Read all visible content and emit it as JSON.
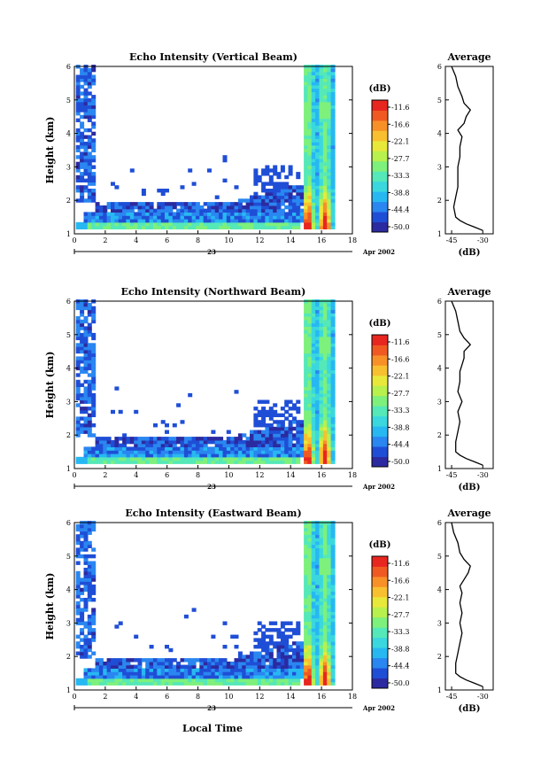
{
  "figure": {
    "xlabel": "Local Time",
    "day_label": "23",
    "month_label": "Apr 2002",
    "colorbar_unit": "(dB)",
    "average_title": "Average",
    "average_xlabel": "(dB)"
  },
  "colors": {
    "scale": [
      "#2c2aa0",
      "#1f4ed6",
      "#2a86f0",
      "#27b8f2",
      "#3ad8de",
      "#55e8b8",
      "#7ef07c",
      "#b8f04e",
      "#e8e83a",
      "#f8c030",
      "#f89028",
      "#f05a22",
      "#e82620"
    ]
  },
  "chart_data": [
    {
      "type": "heatmap",
      "title": "Echo Intensity (Vertical Beam)",
      "ylabel": "Height (km)",
      "xlim": [
        0,
        18
      ],
      "ylim": [
        1,
        6
      ],
      "xticks": [
        "0",
        "2",
        "4",
        "6",
        "8",
        "10",
        "12",
        "14",
        "16",
        "18"
      ],
      "yticks": [
        "1",
        "2",
        "3",
        "4",
        "5",
        "6"
      ],
      "colorbar_ticks": [
        "-11.6",
        "-16.6",
        "-22.1",
        "-27.7",
        "-33.3",
        "-38.8",
        "-44.4",
        "-50.0"
      ],
      "profile_xticks": [
        "-45",
        "-30"
      ],
      "profile": {
        "height": [
          1.1,
          1.2,
          1.3,
          1.4,
          1.5,
          1.8,
          2.1,
          2.4,
          2.7,
          3.0,
          3.3,
          3.6,
          3.9,
          4.1,
          4.3,
          4.5,
          4.7,
          4.9,
          5.1,
          5.4,
          5.7,
          6.0
        ],
        "db": [
          -30,
          -34,
          -38,
          -41,
          -43,
          -44,
          -43,
          -42,
          -42,
          -42,
          -41,
          -41,
          -40,
          -42,
          -39,
          -38,
          -36,
          -39,
          -40,
          -42,
          -43,
          -45
        ]
      }
    },
    {
      "type": "heatmap",
      "title": "Echo Intensity (Northward Beam)",
      "ylabel": "Height (km)",
      "xlim": [
        0,
        18
      ],
      "ylim": [
        1,
        6
      ],
      "xticks": [
        "0",
        "2",
        "4",
        "6",
        "8",
        "10",
        "12",
        "14",
        "16",
        "18"
      ],
      "yticks": [
        "1",
        "2",
        "3",
        "4",
        "5",
        "6"
      ],
      "colorbar_ticks": [
        "-11.6",
        "-16.6",
        "-22.1",
        "-27.7",
        "-33.3",
        "-38.8",
        "-44.4",
        "-50.0"
      ],
      "profile_xticks": [
        "-45",
        "-30"
      ],
      "profile": {
        "height": [
          1.1,
          1.2,
          1.3,
          1.4,
          1.5,
          1.8,
          2.1,
          2.4,
          2.7,
          3.0,
          3.3,
          3.6,
          3.9,
          4.1,
          4.3,
          4.5,
          4.7,
          4.9,
          5.1,
          5.4,
          5.7,
          6.0
        ],
        "db": [
          -30,
          -34,
          -38,
          -41,
          -43,
          -43,
          -42,
          -41,
          -42,
          -40,
          -42,
          -41,
          -41,
          -40,
          -39,
          -39,
          -36,
          -39,
          -41,
          -42,
          -43,
          -45
        ]
      }
    },
    {
      "type": "heatmap",
      "title": "Echo Intensity (Eastward Beam)",
      "ylabel": "Height (km)",
      "xlim": [
        0,
        18
      ],
      "ylim": [
        1,
        6
      ],
      "xticks": [
        "0",
        "2",
        "4",
        "6",
        "8",
        "10",
        "12",
        "14",
        "16",
        "18"
      ],
      "yticks": [
        "1",
        "2",
        "3",
        "4",
        "5",
        "6"
      ],
      "colorbar_ticks": [
        "-11.6",
        "-16.6",
        "-22.1",
        "-27.7",
        "-33.3",
        "-38.8",
        "-44.4",
        "-50.0"
      ],
      "profile_xticks": [
        "-45",
        "-30"
      ],
      "profile": {
        "height": [
          1.1,
          1.2,
          1.3,
          1.4,
          1.5,
          1.8,
          2.1,
          2.4,
          2.7,
          3.0,
          3.3,
          3.6,
          3.9,
          4.1,
          4.3,
          4.5,
          4.7,
          4.9,
          5.1,
          5.4,
          5.7,
          6.0
        ],
        "db": [
          -30,
          -34,
          -38,
          -41,
          -43,
          -43,
          -42,
          -41,
          -40,
          -41,
          -40,
          -41,
          -40,
          -41,
          -39,
          -37,
          -36,
          -39,
          -41,
          -42,
          -44,
          -45
        ]
      }
    }
  ]
}
